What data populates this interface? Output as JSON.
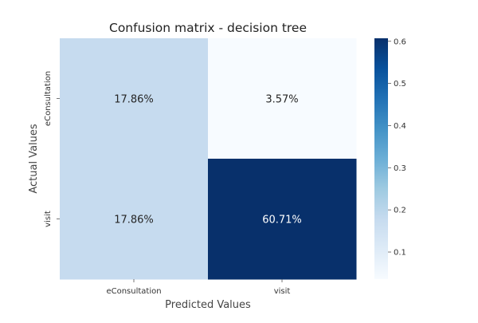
{
  "chart_data": {
    "type": "heatmap",
    "title": "Confusion matrix - decision tree",
    "xlabel": "Predicted Values",
    "ylabel": "Actual Values",
    "x_categories": [
      "eConsultation",
      "visit"
    ],
    "y_categories": [
      "eConsultation",
      "visit"
    ],
    "values": [
      [
        0.1786,
        0.0357
      ],
      [
        0.1786,
        0.6071
      ]
    ],
    "cell_labels": [
      [
        "17.86%",
        "3.57%"
      ],
      [
        "17.86%",
        "60.71%"
      ]
    ],
    "colorbar": {
      "ticks": [
        0.1,
        0.2,
        0.3,
        0.4,
        0.5,
        0.6
      ],
      "tick_labels": [
        "0.1",
        "0.2",
        "0.3",
        "0.4",
        "0.5",
        "0.6"
      ],
      "range": [
        0.0357,
        0.6071
      ],
      "colormap": "Blues"
    }
  }
}
